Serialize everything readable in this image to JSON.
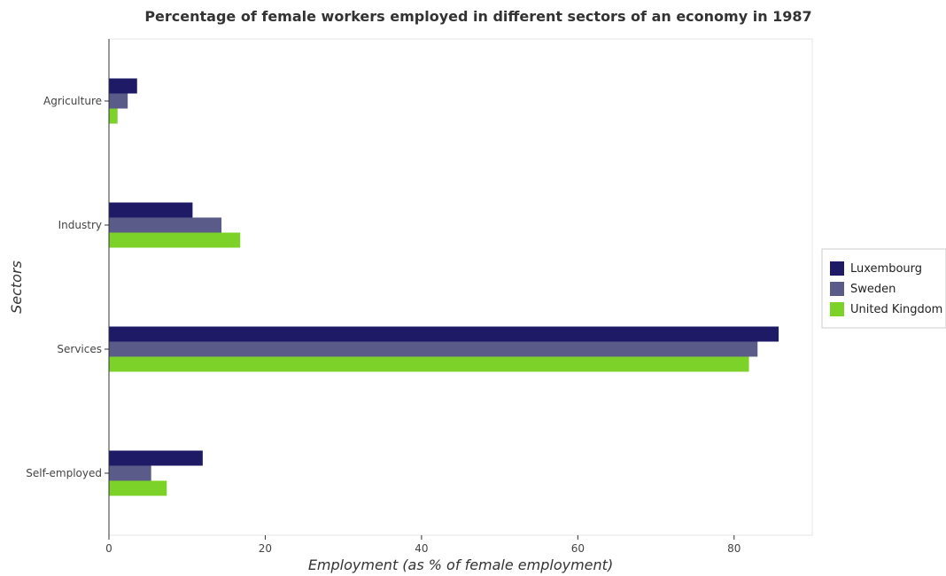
{
  "chart_data": {
    "type": "bar",
    "orientation": "horizontal",
    "title": "Percentage of female workers employed in different sectors of an economy in 1987",
    "xlabel": "Employment (as % of female employment)",
    "ylabel": "Sectors",
    "categories": [
      "Agriculture",
      "Industry",
      "Services",
      "Self-employed"
    ],
    "xlim": [
      0,
      90
    ],
    "xticks": [
      0,
      20,
      40,
      60,
      80
    ],
    "grid": false,
    "legend_position": "right",
    "series": [
      {
        "name": "Luxembourg",
        "color": "#1e1a66",
        "values": [
          3.6,
          10.7,
          85.7,
          12.0
        ]
      },
      {
        "name": "Sweden",
        "color": "#5b5b8a",
        "values": [
          2.4,
          14.4,
          83.0,
          5.4
        ]
      },
      {
        "name": "United Kingdom",
        "color": "#7dd22a",
        "values": [
          1.1,
          16.8,
          81.9,
          7.4
        ]
      }
    ]
  }
}
